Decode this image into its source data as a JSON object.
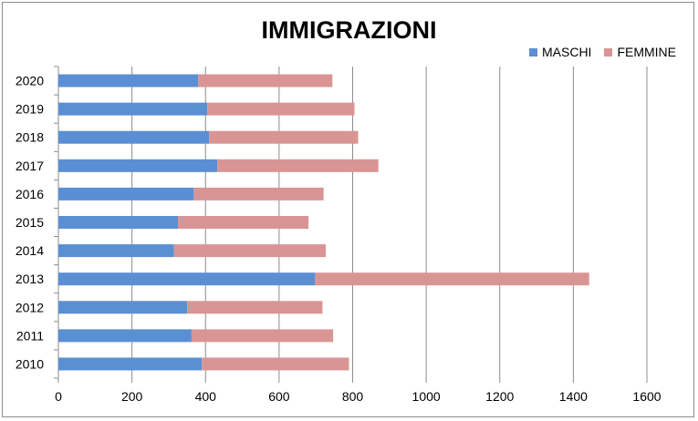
{
  "chart_data": {
    "type": "bar",
    "orientation": "horizontal",
    "stacked": true,
    "title": "IMMIGRAZIONI",
    "categories": [
      "2010",
      "2011",
      "2012",
      "2013",
      "2014",
      "2015",
      "2016",
      "2017",
      "2018",
      "2019",
      "2020"
    ],
    "series": [
      {
        "name": "MASCHI",
        "color": "#5b8fd4",
        "values": [
          390,
          362,
          350,
          698,
          314,
          325,
          368,
          432,
          410,
          405,
          380
        ]
      },
      {
        "name": "FEMMINE",
        "color": "#d99594",
        "values": [
          400,
          385,
          368,
          745,
          413,
          355,
          353,
          438,
          405,
          400,
          365
        ]
      }
    ],
    "xlim": [
      0,
      1600
    ],
    "xticks": [
      "0",
      "200",
      "400",
      "600",
      "800",
      "1000",
      "1200",
      "1400",
      "1600"
    ],
    "grid": "vertical",
    "legend_position": "top-right"
  }
}
